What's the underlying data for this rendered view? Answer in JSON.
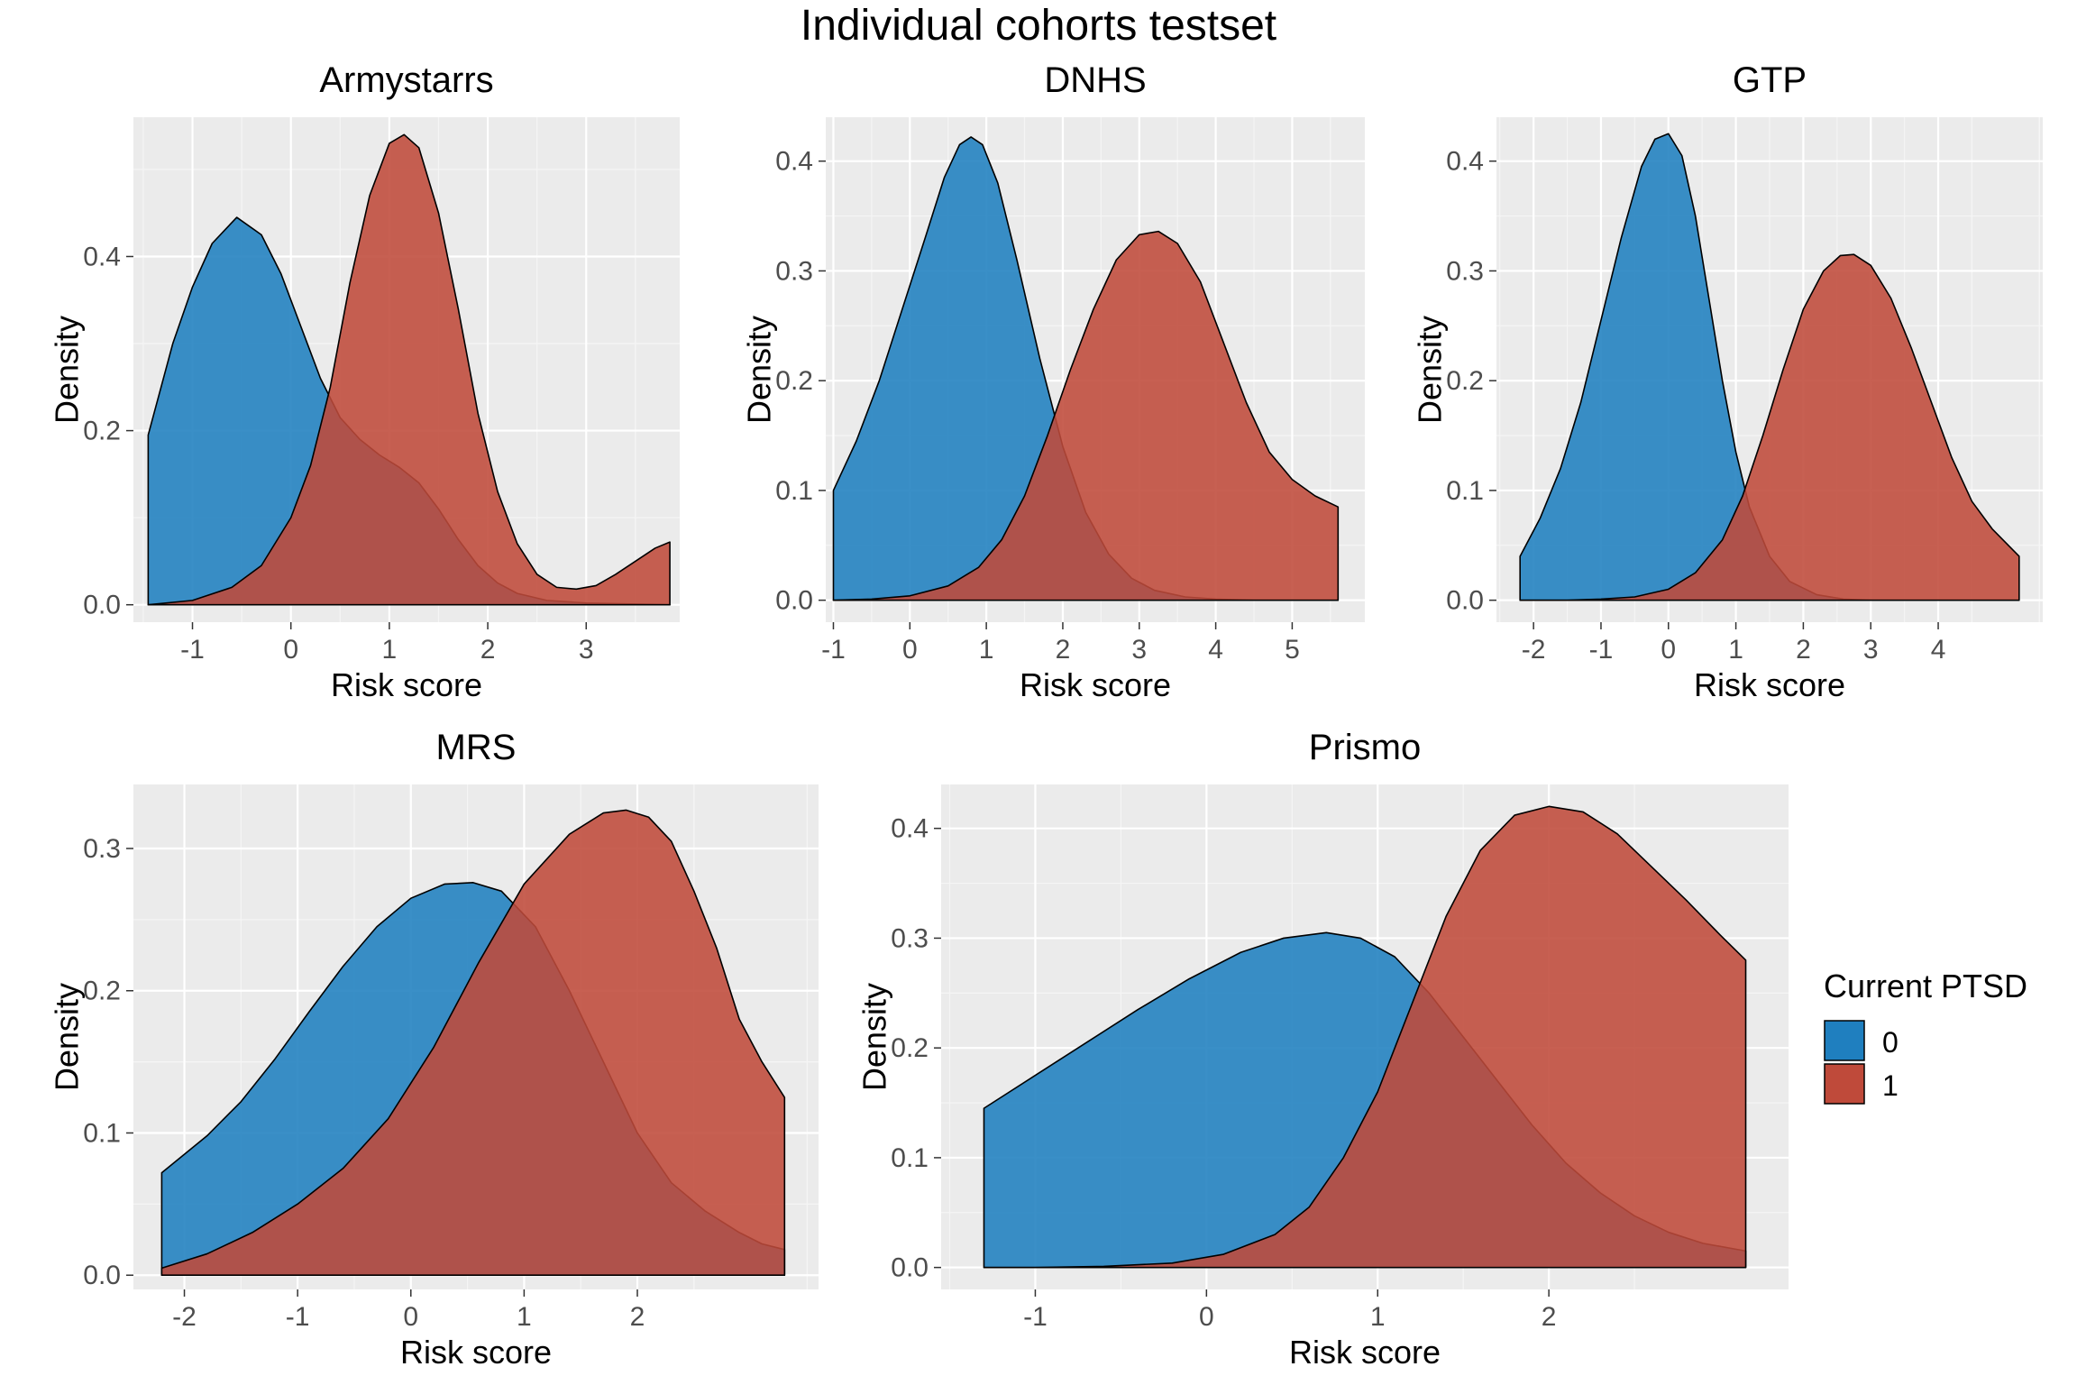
{
  "title": "Individual cohorts testset",
  "legend": {
    "title": "Current PTSD",
    "items": [
      {
        "label": "0",
        "color": "#1f7fbf"
      },
      {
        "label": "1",
        "color": "#bf4a3a"
      }
    ]
  },
  "chart_data": [
    {
      "type": "area",
      "title": "Armystarrs",
      "xlabel": "Risk score",
      "ylabel": "Density",
      "xlim": [
        -1.6,
        3.95
      ],
      "ylim": [
        -0.02,
        0.56
      ],
      "xticks": [
        -1,
        0,
        1,
        2,
        3
      ],
      "yticks": [
        0.0,
        0.2,
        0.4
      ],
      "ytick_labels": [
        "0.0",
        "0.2",
        "0.4"
      ],
      "series": [
        {
          "name": "0",
          "x": [
            -1.45,
            -1.2,
            -1.0,
            -0.8,
            -0.55,
            -0.3,
            -0.1,
            0.1,
            0.3,
            0.5,
            0.7,
            0.9,
            1.1,
            1.3,
            1.5,
            1.7,
            1.9,
            2.1,
            2.3,
            2.6,
            3.0,
            3.4,
            3.85
          ],
          "y": [
            0.195,
            0.3,
            0.365,
            0.415,
            0.445,
            0.425,
            0.38,
            0.32,
            0.26,
            0.215,
            0.19,
            0.172,
            0.158,
            0.14,
            0.11,
            0.075,
            0.045,
            0.025,
            0.013,
            0.005,
            0.002,
            0.001,
            0.0
          ]
        },
        {
          "name": "1",
          "x": [
            -1.45,
            -1.0,
            -0.6,
            -0.3,
            0.0,
            0.2,
            0.4,
            0.6,
            0.8,
            1.0,
            1.15,
            1.3,
            1.5,
            1.7,
            1.9,
            2.1,
            2.3,
            2.5,
            2.7,
            2.9,
            3.1,
            3.3,
            3.5,
            3.7,
            3.85
          ],
          "y": [
            0.0,
            0.005,
            0.02,
            0.045,
            0.1,
            0.16,
            0.25,
            0.37,
            0.47,
            0.53,
            0.54,
            0.525,
            0.45,
            0.34,
            0.22,
            0.13,
            0.07,
            0.035,
            0.02,
            0.018,
            0.022,
            0.035,
            0.05,
            0.065,
            0.072
          ]
        }
      ]
    },
    {
      "type": "area",
      "title": "DNHS",
      "xlabel": "Risk score",
      "ylabel": "Density",
      "xlim": [
        -1.1,
        5.95
      ],
      "ylim": [
        -0.02,
        0.44
      ],
      "xticks": [
        -1,
        0,
        1,
        2,
        3,
        4,
        5
      ],
      "yticks": [
        0.0,
        0.1,
        0.2,
        0.3,
        0.4
      ],
      "ytick_labels": [
        "0.0",
        "0.1",
        "0.2",
        "0.3",
        "0.4"
      ],
      "series": [
        {
          "name": "0",
          "x": [
            -1.0,
            -0.7,
            -0.4,
            -0.1,
            0.2,
            0.45,
            0.65,
            0.8,
            0.95,
            1.15,
            1.4,
            1.7,
            2.0,
            2.3,
            2.6,
            2.9,
            3.2,
            3.6,
            4.0,
            4.5,
            5.0,
            5.6
          ],
          "y": [
            0.1,
            0.145,
            0.2,
            0.265,
            0.33,
            0.385,
            0.415,
            0.422,
            0.415,
            0.38,
            0.31,
            0.22,
            0.14,
            0.08,
            0.042,
            0.02,
            0.009,
            0.003,
            0.001,
            0.0,
            0.0,
            0.0
          ]
        },
        {
          "name": "1",
          "x": [
            -1.0,
            -0.5,
            0.0,
            0.5,
            0.9,
            1.2,
            1.5,
            1.8,
            2.1,
            2.4,
            2.7,
            3.0,
            3.25,
            3.5,
            3.8,
            4.1,
            4.4,
            4.7,
            5.0,
            5.3,
            5.6
          ],
          "y": [
            0.0,
            0.001,
            0.004,
            0.013,
            0.03,
            0.055,
            0.095,
            0.15,
            0.21,
            0.265,
            0.31,
            0.333,
            0.336,
            0.325,
            0.29,
            0.235,
            0.18,
            0.135,
            0.11,
            0.095,
            0.085
          ]
        }
      ]
    },
    {
      "type": "area",
      "title": "GTP",
      "xlabel": "Risk score",
      "ylabel": "Density",
      "xlim": [
        -2.55,
        5.55
      ],
      "ylim": [
        -0.02,
        0.44
      ],
      "xticks": [
        -2,
        -1,
        0,
        1,
        2,
        3,
        4
      ],
      "yticks": [
        0.0,
        0.1,
        0.2,
        0.3,
        0.4
      ],
      "ytick_labels": [
        "0.0",
        "0.1",
        "0.2",
        "0.3",
        "0.4"
      ],
      "series": [
        {
          "name": "0",
          "x": [
            -2.2,
            -1.9,
            -1.6,
            -1.3,
            -1.0,
            -0.7,
            -0.4,
            -0.2,
            0.0,
            0.2,
            0.4,
            0.6,
            0.8,
            1.0,
            1.2,
            1.5,
            1.8,
            2.2,
            2.6,
            3.0,
            3.5,
            4.0,
            4.5,
            5.2
          ],
          "y": [
            0.04,
            0.075,
            0.12,
            0.18,
            0.255,
            0.33,
            0.395,
            0.42,
            0.425,
            0.405,
            0.35,
            0.275,
            0.2,
            0.135,
            0.085,
            0.04,
            0.017,
            0.005,
            0.001,
            0.0,
            0.0,
            0.0,
            0.0,
            0.0
          ]
        },
        {
          "name": "1",
          "x": [
            -2.2,
            -1.5,
            -1.0,
            -0.5,
            0.0,
            0.4,
            0.8,
            1.1,
            1.4,
            1.7,
            2.0,
            2.3,
            2.55,
            2.75,
            3.0,
            3.3,
            3.6,
            3.9,
            4.2,
            4.5,
            4.8,
            5.2
          ],
          "y": [
            0.0,
            0.0,
            0.001,
            0.003,
            0.01,
            0.025,
            0.055,
            0.095,
            0.15,
            0.21,
            0.265,
            0.3,
            0.314,
            0.315,
            0.305,
            0.275,
            0.23,
            0.18,
            0.13,
            0.09,
            0.065,
            0.04
          ]
        }
      ]
    },
    {
      "type": "area",
      "title": "MRS",
      "xlabel": "Risk score",
      "ylabel": "Density",
      "xlim": [
        -2.45,
        3.6
      ],
      "ylim": [
        -0.01,
        0.345
      ],
      "xticks": [
        -2,
        -1,
        0,
        1,
        2
      ],
      "yticks": [
        0.0,
        0.1,
        0.2,
        0.3
      ],
      "ytick_labels": [
        "0.0",
        "0.1",
        "0.2",
        "0.3"
      ],
      "series": [
        {
          "name": "0",
          "x": [
            -2.2,
            -1.8,
            -1.5,
            -1.2,
            -0.9,
            -0.6,
            -0.3,
            0.0,
            0.3,
            0.55,
            0.8,
            1.1,
            1.4,
            1.7,
            2.0,
            2.3,
            2.6,
            2.9,
            3.1,
            3.3
          ],
          "y": [
            0.072,
            0.098,
            0.122,
            0.152,
            0.185,
            0.217,
            0.245,
            0.265,
            0.275,
            0.276,
            0.27,
            0.245,
            0.2,
            0.15,
            0.1,
            0.065,
            0.045,
            0.03,
            0.022,
            0.018
          ]
        },
        {
          "name": "1",
          "x": [
            -2.2,
            -1.8,
            -1.4,
            -1.0,
            -0.6,
            -0.2,
            0.2,
            0.6,
            1.0,
            1.4,
            1.7,
            1.9,
            2.1,
            2.3,
            2.5,
            2.7,
            2.9,
            3.1,
            3.3
          ],
          "y": [
            0.005,
            0.015,
            0.03,
            0.05,
            0.075,
            0.11,
            0.16,
            0.22,
            0.275,
            0.31,
            0.325,
            0.327,
            0.322,
            0.305,
            0.27,
            0.23,
            0.18,
            0.15,
            0.125
          ]
        }
      ]
    },
    {
      "type": "area",
      "title": "Prismo",
      "xlabel": "Risk score",
      "ylabel": "Density",
      "xlim": [
        -1.55,
        3.4
      ],
      "ylim": [
        -0.02,
        0.44
      ],
      "xticks": [
        -1,
        0,
        1,
        2
      ],
      "yticks": [
        0.0,
        0.1,
        0.2,
        0.3,
        0.4
      ],
      "ytick_labels": [
        "0.0",
        "0.1",
        "0.2",
        "0.3",
        "0.4"
      ],
      "series": [
        {
          "name": "0",
          "x": [
            -1.3,
            -1.0,
            -0.7,
            -0.4,
            -0.1,
            0.2,
            0.45,
            0.7,
            0.9,
            1.1,
            1.3,
            1.5,
            1.7,
            1.9,
            2.1,
            2.3,
            2.5,
            2.7,
            2.9,
            3.15
          ],
          "y": [
            0.145,
            0.175,
            0.205,
            0.235,
            0.263,
            0.287,
            0.3,
            0.305,
            0.3,
            0.283,
            0.25,
            0.21,
            0.17,
            0.13,
            0.095,
            0.068,
            0.047,
            0.032,
            0.022,
            0.015
          ]
        },
        {
          "name": "1",
          "x": [
            -1.3,
            -1.0,
            -0.6,
            -0.2,
            0.1,
            0.4,
            0.6,
            0.8,
            1.0,
            1.2,
            1.4,
            1.6,
            1.8,
            2.0,
            2.2,
            2.4,
            2.6,
            2.8,
            3.0,
            3.15
          ],
          "y": [
            0.0,
            0.0,
            0.001,
            0.004,
            0.012,
            0.03,
            0.055,
            0.1,
            0.16,
            0.24,
            0.32,
            0.38,
            0.412,
            0.42,
            0.415,
            0.395,
            0.365,
            0.335,
            0.303,
            0.28
          ]
        }
      ]
    }
  ]
}
